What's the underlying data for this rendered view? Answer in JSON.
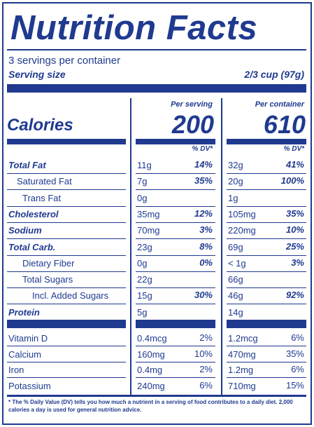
{
  "title": "Nutrition Facts",
  "servings_per_container": "3 servings per container",
  "serving_size_label": "Serving size",
  "serving_size_value": "2/3 cup (97g)",
  "col_per_serving": "Per serving",
  "col_per_container": "Per container",
  "calories_label": "Calories",
  "calories_serving": "200",
  "calories_container": "610",
  "dv_header": "% DV*",
  "nutrients": [
    {
      "name": "Total Fat",
      "bold": true,
      "indent": 0,
      "serving": "11g",
      "serving_dv": "14%",
      "container": "32g",
      "container_dv": "41%"
    },
    {
      "name": "Saturated Fat",
      "bold": false,
      "indent": 1,
      "serving": "7g",
      "serving_dv": "35%",
      "container": "20g",
      "container_dv": "100%"
    },
    {
      "name": "Trans Fat",
      "bold": false,
      "indent": 2,
      "serving": "0g",
      "serving_dv": "",
      "container": "1g",
      "container_dv": ""
    },
    {
      "name": "Cholesterol",
      "bold": true,
      "indent": 0,
      "serving": "35mg",
      "serving_dv": "12%",
      "container": "105mg",
      "container_dv": "35%"
    },
    {
      "name": "Sodium",
      "bold": true,
      "indent": 0,
      "serving": "70mg",
      "serving_dv": "3%",
      "container": "220mg",
      "container_dv": "10%"
    },
    {
      "name": "Total Carb.",
      "bold": true,
      "indent": 0,
      "serving": "23g",
      "serving_dv": "8%",
      "container": "69g",
      "container_dv": "25%"
    },
    {
      "name": "Dietary Fiber",
      "bold": false,
      "indent": 2,
      "serving": "0g",
      "serving_dv": "0%",
      "container": "< 1g",
      "container_dv": "3%"
    },
    {
      "name": "Total Sugars",
      "bold": false,
      "indent": 2,
      "serving": "22g",
      "serving_dv": "",
      "container": "66g",
      "container_dv": ""
    },
    {
      "name": "Incl. Added Sugars",
      "bold": false,
      "indent": 3,
      "serving": "15g",
      "serving_dv": "30%",
      "container": "46g",
      "container_dv": "92%"
    },
    {
      "name": "Protein",
      "bold": true,
      "indent": 0,
      "serving": "5g",
      "serving_dv": "",
      "container": "14g",
      "container_dv": ""
    }
  ],
  "vitamins": [
    {
      "name": "Vitamin D",
      "serving": "0.4mcg",
      "serving_dv": "2%",
      "container": "1.2mcg",
      "container_dv": "6%"
    },
    {
      "name": "Calcium",
      "serving": "160mg",
      "serving_dv": "10%",
      "container": "470mg",
      "container_dv": "35%"
    },
    {
      "name": "Iron",
      "serving": "0.4mg",
      "serving_dv": "2%",
      "container": "1.2mg",
      "container_dv": "6%"
    },
    {
      "name": "Potassium",
      "serving": "240mg",
      "serving_dv": "6%",
      "container": "710mg",
      "container_dv": "15%"
    }
  ],
  "footnote": "* The % Daily Value (DV) tells you how much a nutrient in a serving of food contributes to a daily diet. 2,000 calories a day is used for general nutrition advice."
}
